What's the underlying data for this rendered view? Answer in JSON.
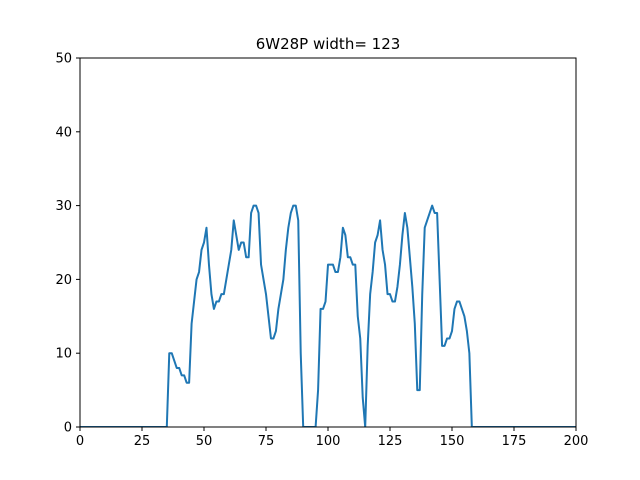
{
  "chart_data": {
    "type": "line",
    "title": "6W28P width= 123",
    "xlabel": "",
    "ylabel": "",
    "xlim": [
      0,
      200
    ],
    "ylim": [
      0,
      50
    ],
    "xticks": [
      0,
      25,
      50,
      75,
      100,
      125,
      150,
      175,
      200
    ],
    "yticks": [
      0,
      10,
      20,
      30,
      40,
      50
    ],
    "grid": false,
    "series": [
      {
        "color": "#1f77b4",
        "x": [
          0,
          35,
          36,
          37,
          38,
          39,
          40,
          41,
          42,
          43,
          44,
          45,
          46,
          47,
          48,
          49,
          50,
          51,
          52,
          53,
          54,
          55,
          56,
          57,
          58,
          59,
          60,
          61,
          62,
          63,
          64,
          65,
          66,
          67,
          68,
          69,
          70,
          71,
          72,
          73,
          74,
          75,
          76,
          77,
          78,
          79,
          80,
          81,
          82,
          83,
          84,
          85,
          86,
          87,
          88,
          89,
          90,
          91,
          92,
          93,
          94,
          95,
          96,
          97,
          98,
          99,
          100,
          101,
          102,
          103,
          104,
          105,
          106,
          107,
          108,
          109,
          110,
          111,
          112,
          113,
          114,
          115,
          116,
          117,
          118,
          119,
          120,
          121,
          122,
          123,
          124,
          125,
          126,
          127,
          128,
          129,
          130,
          131,
          132,
          133,
          134,
          135,
          136,
          137,
          138,
          139,
          140,
          141,
          142,
          143,
          144,
          145,
          146,
          147,
          148,
          149,
          150,
          151,
          152,
          153,
          154,
          155,
          156,
          157,
          158,
          200
        ],
        "y": [
          0,
          0,
          10,
          10,
          9,
          8,
          8,
          7,
          7,
          6,
          6,
          14,
          17,
          20,
          21,
          24,
          25,
          27,
          22,
          18,
          16,
          17,
          17,
          18,
          18,
          20,
          22,
          24,
          28,
          26,
          24,
          25,
          25,
          23,
          23,
          29,
          30,
          30,
          29,
          22,
          20,
          18,
          15,
          12,
          12,
          13,
          16,
          18,
          20,
          24,
          27,
          29,
          30,
          30,
          28,
          10,
          0,
          0,
          0,
          0,
          0,
          0,
          5,
          16,
          16,
          17,
          22,
          22,
          22,
          21,
          21,
          23,
          27,
          26,
          23,
          23,
          22,
          22,
          15,
          12,
          4,
          0,
          11,
          18,
          21,
          25,
          26,
          28,
          24,
          22,
          18,
          18,
          17,
          17,
          19,
          22,
          26,
          29,
          27,
          23,
          19,
          14,
          5,
          5,
          18,
          27,
          28,
          29,
          30,
          29,
          29,
          20,
          11,
          11,
          12,
          12,
          13,
          16,
          17,
          17,
          16,
          15,
          13,
          10,
          0,
          0
        ]
      }
    ]
  }
}
